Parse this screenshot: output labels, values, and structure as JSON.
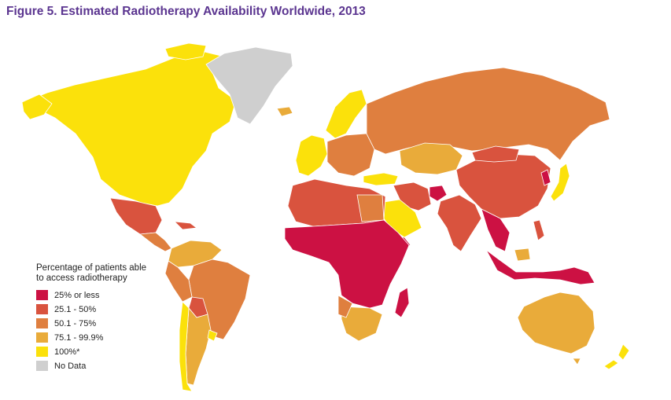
{
  "figure": {
    "title": "Figure 5. Estimated Radiotherapy Availability Worldwide, 2013"
  },
  "legend": {
    "heading": "Percentage of patients able to access radiotherapy",
    "items": [
      {
        "label": "25% or less",
        "color": "#cc1143"
      },
      {
        "label": "25.1 - 50%",
        "color": "#d9533e"
      },
      {
        "label": "50.1 - 75%",
        "color": "#df7f3f"
      },
      {
        "label": "75.1 - 99.9%",
        "color": "#e9ab3a"
      },
      {
        "label": "100%*",
        "color": "#fbe10b"
      },
      {
        "label": "No Data",
        "color": "#cfcfcf"
      }
    ]
  },
  "map_regions": [
    {
      "name": "North America",
      "category": "100%*"
    },
    {
      "name": "Greenland",
      "category": "No Data"
    },
    {
      "name": "Mexico",
      "category": "25.1 - 50%"
    },
    {
      "name": "Central America",
      "category": "50.1 - 75%"
    },
    {
      "name": "South America (north)",
      "category": "75.1 - 99.9%"
    },
    {
      "name": "Brazil",
      "category": "50.1 - 75%"
    },
    {
      "name": "Bolivia",
      "category": "25.1 - 50%"
    },
    {
      "name": "Southern Cone",
      "category": "75.1 - 99.9%"
    },
    {
      "name": "Chile",
      "category": "100%*"
    },
    {
      "name": "Western Europe",
      "category": "100%*"
    },
    {
      "name": "Eastern Europe",
      "category": "50.1 - 75%"
    },
    {
      "name": "Russia",
      "category": "50.1 - 75%"
    },
    {
      "name": "Central Asia",
      "category": "75.1 - 99.9%"
    },
    {
      "name": "China",
      "category": "25.1 - 50%"
    },
    {
      "name": "India",
      "category": "25.1 - 50%"
    },
    {
      "name": "Afghanistan",
      "category": "25% or less"
    },
    {
      "name": "Saudi Arabia",
      "category": "100%*"
    },
    {
      "name": "North Africa",
      "category": "25.1 - 50%"
    },
    {
      "name": "Sub-Saharan Africa",
      "category": "25% or less"
    },
    {
      "name": "Southern Africa",
      "category": "75.1 - 99.9%"
    },
    {
      "name": "Madagascar",
      "category": "25% or less"
    },
    {
      "name": "Japan",
      "category": "100%*"
    },
    {
      "name": "Indonesia",
      "category": "25% or less"
    },
    {
      "name": "Australia",
      "category": "75.1 - 99.9%"
    },
    {
      "name": "New Zealand",
      "category": "100%*"
    }
  ]
}
